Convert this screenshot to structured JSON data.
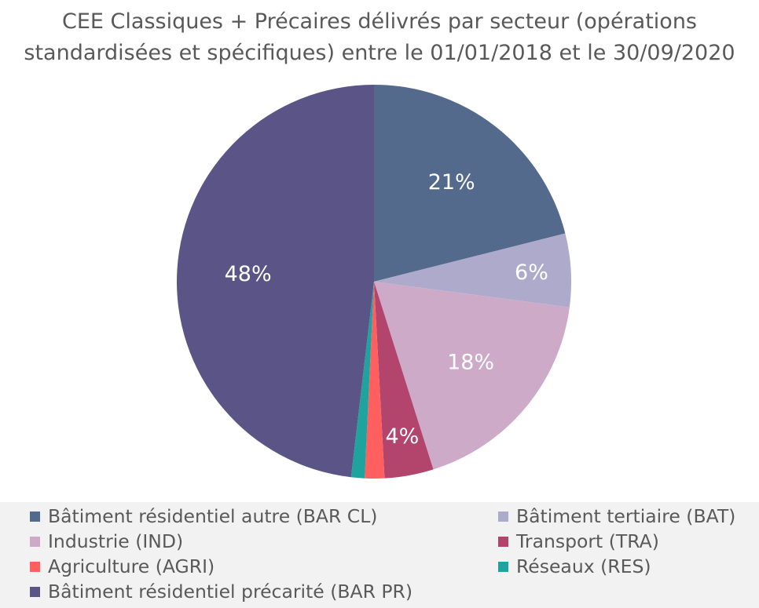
{
  "chart_data": {
    "type": "pie",
    "title_lines": [
      "CEE Classiques + Précaires délivrés par secteur (opérations",
      "standardisées et spécifiques) entre le 01/01/2018 et le 30/09/2020"
    ],
    "slices": [
      {
        "name": "Bâtiment résidentiel autre (BAR CL)",
        "value": 21,
        "label": "21%",
        "color": "#536a8c"
      },
      {
        "name": "Bâtiment tertiaire (BAT)",
        "value": 6,
        "label": "6%",
        "color": "#aeaacc"
      },
      {
        "name": "Industrie (IND)",
        "value": 18,
        "label": "18%",
        "color": "#ccaac8"
      },
      {
        "name": "Transport (TRA)",
        "value": 4,
        "label": "4%",
        "color": "#b3446b"
      },
      {
        "name": "Agriculture (AGRI)",
        "value": 1.6,
        "label": "",
        "color": "#ff5f5f"
      },
      {
        "name": "Réseaux (RES)",
        "value": 1.1,
        "label": "",
        "color": "#1fa39e"
      },
      {
        "name": "Bâtiment résidentiel précarité (BAR PR)",
        "value": 48,
        "label": "48%",
        "color": "#5a5487"
      }
    ],
    "start_angle": "12 o'clock",
    "direction": "clockwise",
    "legend_position": "bottom",
    "label_color": "#ffffff"
  }
}
